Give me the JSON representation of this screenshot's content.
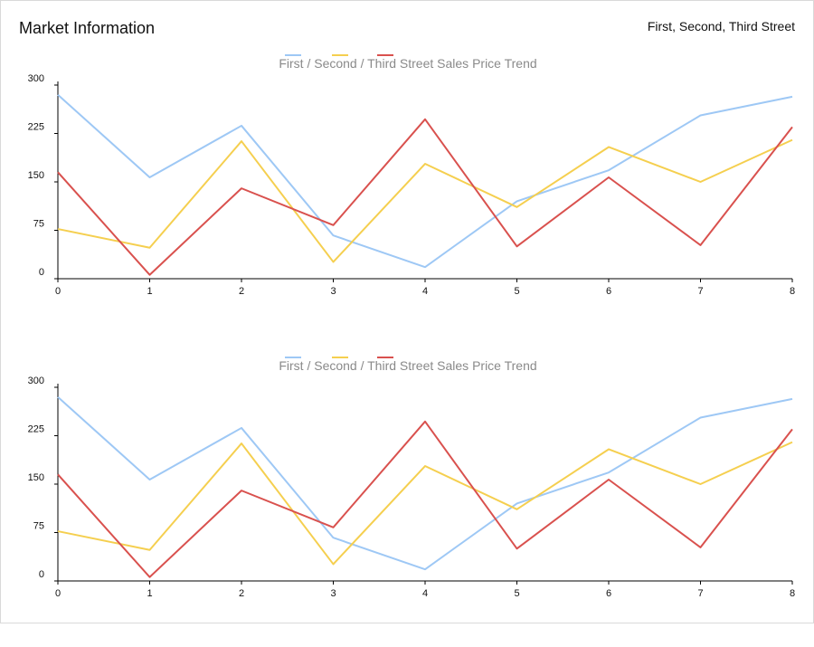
{
  "header": {
    "title": "Market Information",
    "subtitle": "First, Second, Third Street"
  },
  "chart_data": [
    {
      "type": "line",
      "title": "First / Second / Third Street Sales Price Trend",
      "xlabel": "",
      "ylabel": "",
      "x": [
        0,
        1,
        2,
        3,
        4,
        5,
        6,
        7,
        8
      ],
      "xlim": [
        0,
        8
      ],
      "ylim": [
        0,
        300
      ],
      "yticks": [
        0,
        75,
        150,
        225,
        300
      ],
      "grid": false,
      "legend": "top-center",
      "series": [
        {
          "color": "#9ec8f5",
          "values": [
            285,
            157,
            237,
            67,
            18,
            120,
            168,
            253,
            282
          ]
        },
        {
          "color": "#f5cf4f",
          "values": [
            77,
            48,
            213,
            26,
            178,
            111,
            204,
            150,
            215
          ]
        },
        {
          "color": "#d9514e",
          "values": [
            165,
            6,
            140,
            83,
            247,
            50,
            157,
            52,
            235
          ]
        }
      ]
    },
    {
      "type": "line",
      "title": "First / Second / Third Street Sales Price Trend",
      "xlabel": "",
      "ylabel": "",
      "x": [
        0,
        1,
        2,
        3,
        4,
        5,
        6,
        7,
        8
      ],
      "xlim": [
        0,
        8
      ],
      "ylim": [
        0,
        300
      ],
      "yticks": [
        0,
        75,
        150,
        225,
        300
      ],
      "grid": false,
      "legend": "top-center",
      "series": [
        {
          "color": "#9ec8f5",
          "values": [
            285,
            157,
            237,
            67,
            18,
            120,
            168,
            253,
            282
          ]
        },
        {
          "color": "#f5cf4f",
          "values": [
            77,
            48,
            213,
            26,
            178,
            111,
            204,
            150,
            215
          ]
        },
        {
          "color": "#d9514e",
          "values": [
            165,
            6,
            140,
            83,
            247,
            50,
            157,
            52,
            235
          ]
        }
      ]
    }
  ]
}
